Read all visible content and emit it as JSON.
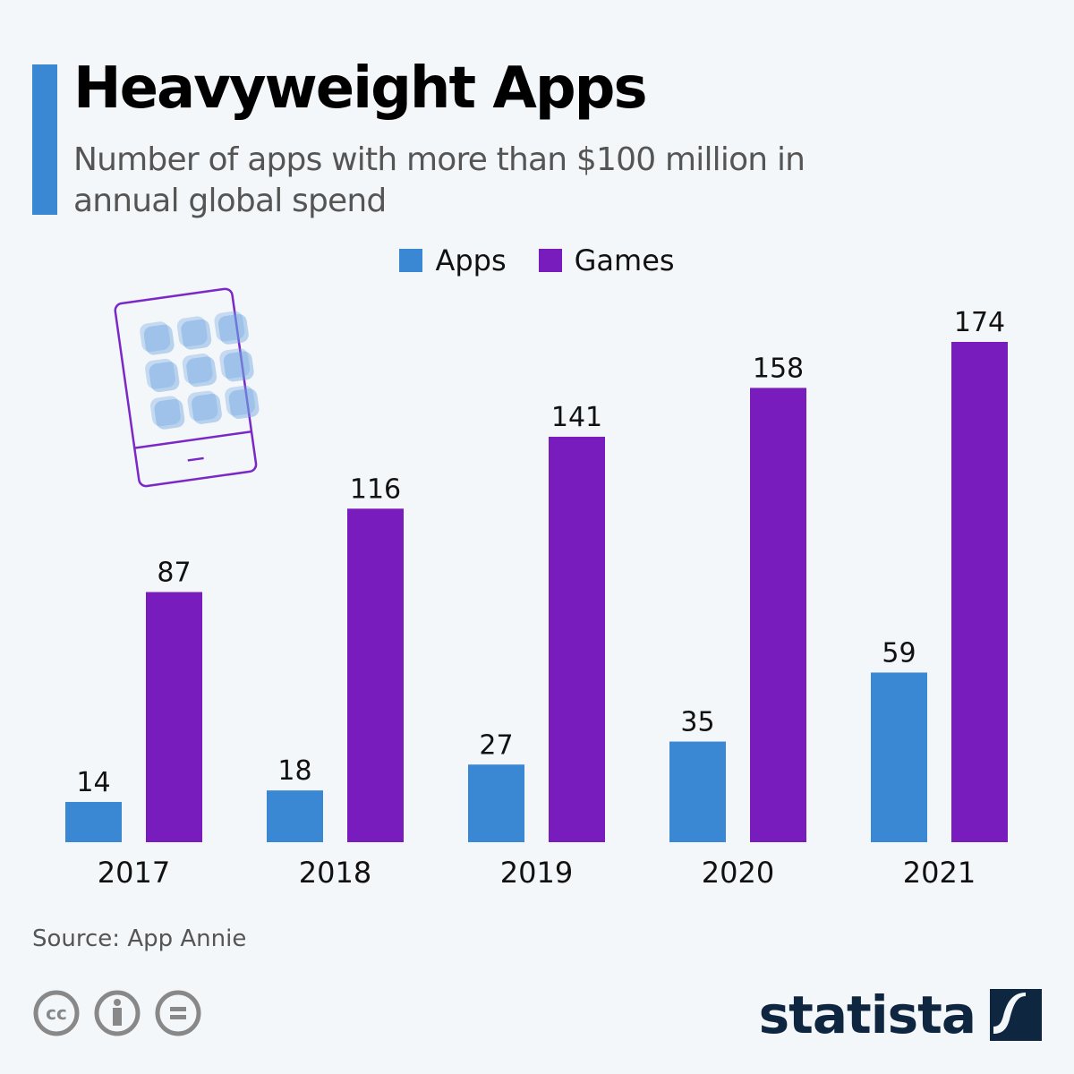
{
  "header": {
    "title": "Heavyweight Apps",
    "subtitle": "Number of apps with more than $100 million in annual global spend"
  },
  "legend": [
    {
      "label": "Apps",
      "color": "#3a87d4"
    },
    {
      "label": "Games",
      "color": "#781cbd"
    }
  ],
  "footer": {
    "source": "Source: App Annie",
    "logo": "statista"
  },
  "colors": {
    "accent": "#3a87d4",
    "apps": "#3a87d4",
    "games": "#781cbd",
    "phone_outline": "#7a28c8"
  },
  "chart_data": {
    "type": "bar",
    "title": "Heavyweight Apps",
    "subtitle": "Number of apps with more than $100 million in annual global spend",
    "categories": [
      "2017",
      "2018",
      "2019",
      "2020",
      "2021"
    ],
    "series": [
      {
        "name": "Apps",
        "values": [
          14,
          18,
          27,
          35,
          59
        ]
      },
      {
        "name": "Games",
        "values": [
          87,
          116,
          141,
          158,
          174
        ]
      }
    ],
    "xlabel": "",
    "ylabel": "",
    "ylim": [
      0,
      174
    ],
    "grid": false,
    "legend_position": "top-center",
    "data_labels": true
  }
}
